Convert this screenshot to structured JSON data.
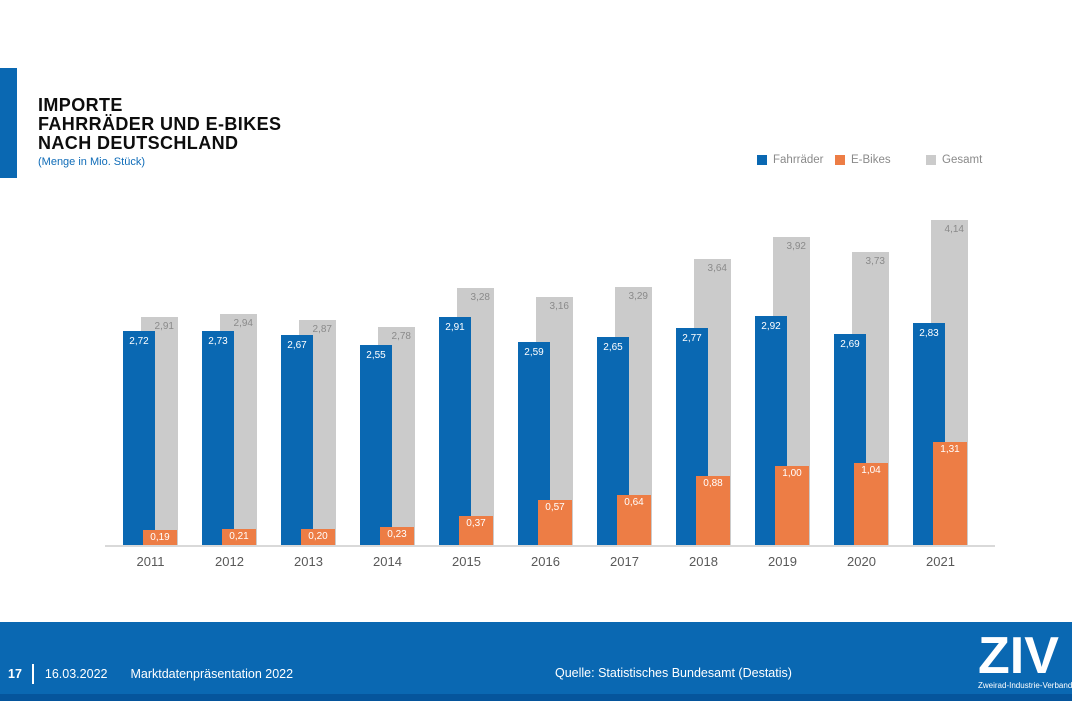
{
  "slide": {
    "title_lines": [
      "IMPORTE",
      "FAHRRÄDER UND E-BIKES",
      "NACH DEUTSCHLAND"
    ],
    "subtitle": "(Menge in Mio. Stück)"
  },
  "legend": [
    {
      "label": "Fahrräder",
      "color": "#0A68B2"
    },
    {
      "label": "E-Bikes",
      "color": "#ED7D45"
    },
    {
      "label": "Gesamt",
      "color": "#CBCBCB"
    }
  ],
  "chart_data": {
    "type": "bar",
    "title": "Importe Fahrräder und E-Bikes nach Deutschland",
    "subtitle": "Menge in Mio. Stück",
    "categories": [
      "2011",
      "2012",
      "2013",
      "2014",
      "2015",
      "2016",
      "2017",
      "2018",
      "2019",
      "2020",
      "2021"
    ],
    "series": [
      {
        "name": "Fahrräder",
        "color": "#0A68B2",
        "label_color": "#ffffff",
        "values": [
          2.72,
          2.73,
          2.67,
          2.55,
          2.91,
          2.59,
          2.65,
          2.77,
          2.92,
          2.69,
          2.83
        ]
      },
      {
        "name": "E-Bikes",
        "color": "#ED7D45",
        "label_color": "#ffffff",
        "values": [
          0.19,
          0.21,
          0.2,
          0.23,
          0.37,
          0.57,
          0.64,
          0.88,
          1.0,
          1.04,
          1.31
        ]
      },
      {
        "name": "Gesamt",
        "color": "#CBCBCB",
        "label_color": "#8a8a8a",
        "values": [
          2.91,
          2.94,
          2.87,
          2.78,
          3.28,
          3.16,
          3.29,
          3.64,
          3.92,
          3.73,
          4.14
        ]
      }
    ],
    "ylim": [
      0,
      4.5
    ],
    "grid": false,
    "legend_position": "top-right",
    "value_label_format": "comma-decimal-2"
  },
  "footer": {
    "page_number": "17",
    "date": "16.03.2022",
    "presentation": "Marktdatenpräsentation 2022",
    "source": "Quelle: Statistisches Bundesamt (Destatis)",
    "logo_text": "ZIV",
    "logo_subtext": "Zweirad-Industrie-Verband"
  },
  "colors": {
    "brand_blue": "#0A68B2",
    "accent_orange": "#ED7D45",
    "neutral_gray": "#CBCBCB",
    "footer_stripe": "#05559C",
    "axis_line": "#D9D9D9",
    "subtitle_blue": "#0F6CB8"
  }
}
